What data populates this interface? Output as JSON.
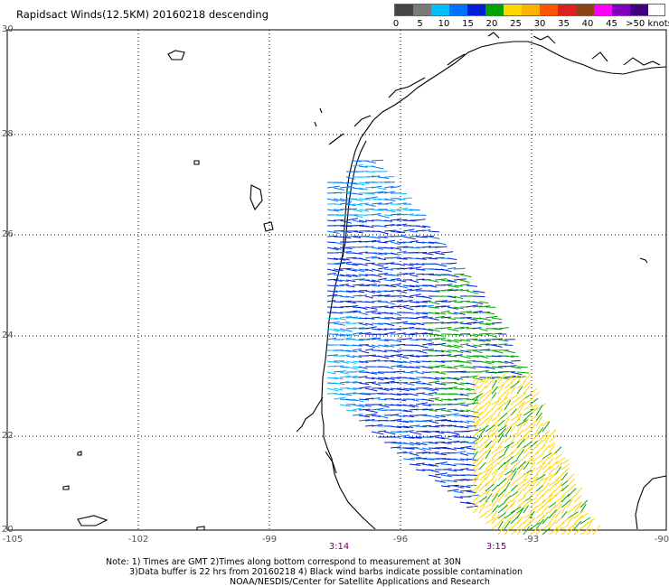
{
  "title": "Rapidsact Winds(12.5KM) 20160218 descending",
  "legend": {
    "colors": [
      "#444444",
      "#7a7a7a",
      "#00bfff",
      "#0070ff",
      "#0020d8",
      "#00a400",
      "#ffd700",
      "#ffb000",
      "#ff5500",
      "#e02020",
      "#8b4513",
      "#ff00ff",
      "#8000c0",
      "#400080"
    ],
    "labels": [
      "0",
      "5",
      "10",
      "15",
      "20",
      "25",
      "30",
      "35",
      "40",
      "45",
      ">50 knots"
    ]
  },
  "axes": {
    "lat_labels": [
      "30",
      "28",
      "26",
      "24",
      "22",
      "20"
    ],
    "lon_labels": [
      "-105",
      "-102",
      "-99",
      "-96",
      "-93",
      "-90"
    ]
  },
  "times": [
    "3:14",
    "3:15"
  ],
  "notes": {
    "line1": "Note: 1) Times are GMT 2)Times along bottom correspond to measurement at 30N",
    "line2": "3)Data buffer is 22 hrs from 20160218 4) Black wind barbs indicate possible contamination",
    "line3": "NOAA/NESDIS/Center for Satellite Applications and Research"
  }
}
